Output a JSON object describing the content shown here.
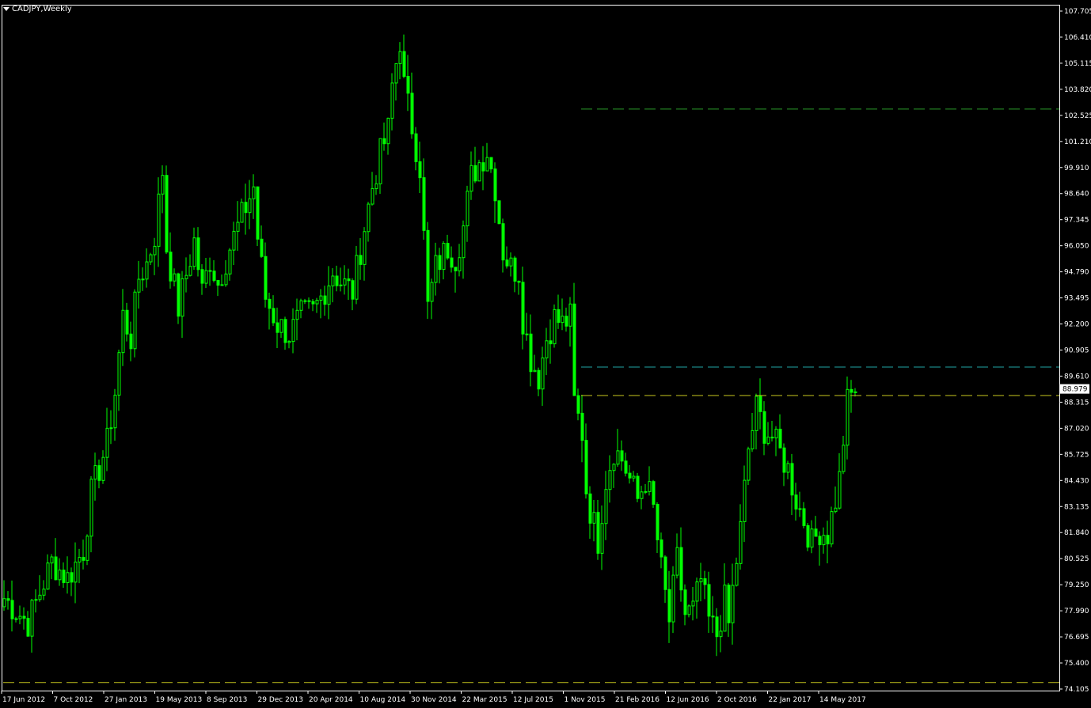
{
  "window": {
    "title": "CADJPY,Weekly"
  },
  "colors": {
    "background": "#000000",
    "axis": "#ffffff",
    "candle": "#00ff00",
    "line_green": "#2a9e2a",
    "line_cyan": "#1fa3a3",
    "line_yellow": "#c8c81e"
  },
  "chart_data": {
    "type": "candlestick",
    "symbol": "CADJPY",
    "timeframe": "Weekly",
    "current_price": "88.979",
    "ylim": [
      74.105,
      107.705
    ],
    "y_ticks": [
      "107.705",
      "106.410",
      "105.115",
      "103.820",
      "102.525",
      "101.210",
      "99.910",
      "98.640",
      "97.345",
      "96.050",
      "94.790",
      "93.495",
      "92.200",
      "90.905",
      "89.610",
      "88.315",
      "87.020",
      "85.725",
      "84.430",
      "83.135",
      "81.840",
      "80.525",
      "79.250",
      "77.990",
      "76.695",
      "75.400",
      "74.105"
    ],
    "x_ticks": [
      "17 Jun 2012",
      "7 Oct 2012",
      "27 Jan 2013",
      "19 May 2013",
      "8 Sep 2013",
      "29 Dec 2013",
      "20 Apr 2014",
      "10 Aug 2014",
      "30 Nov 2014",
      "22 Mar 2015",
      "12 Jul 2015",
      "1 Nov 2015",
      "21 Feb 2016",
      "12 Jun 2016",
      "2 Oct 2016",
      "22 Jan 2017",
      "14 May 2017"
    ],
    "price_path": [
      [
        0,
        78.6
      ],
      [
        6,
        77.4
      ],
      [
        12,
        80.4
      ],
      [
        16,
        79.6
      ],
      [
        20,
        81.0
      ],
      [
        22,
        83.8
      ],
      [
        26,
        86.3
      ],
      [
        28,
        88.8
      ],
      [
        30,
        92.6
      ],
      [
        32,
        91.5
      ],
      [
        34,
        94.5
      ],
      [
        36,
        95.2
      ],
      [
        38,
        96.6
      ],
      [
        40,
        99.8
      ],
      [
        41,
        96.0
      ],
      [
        44,
        93.0
      ],
      [
        48,
        96.3
      ],
      [
        50,
        93.8
      ],
      [
        52,
        95.4
      ],
      [
        54,
        94.2
      ],
      [
        57,
        96.0
      ],
      [
        60,
        97.5
      ],
      [
        63,
        99.0
      ],
      [
        64,
        96.5
      ],
      [
        66,
        93.5
      ],
      [
        69,
        92.2
      ],
      [
        72,
        91.7
      ],
      [
        75,
        92.6
      ],
      [
        78,
        92.8
      ],
      [
        80,
        93.5
      ],
      [
        83,
        94.8
      ],
      [
        85,
        94.3
      ],
      [
        88,
        93.8
      ],
      [
        91,
        97.0
      ],
      [
        93,
        99.0
      ],
      [
        95,
        100.6
      ],
      [
        97,
        101.8
      ],
      [
        98,
        104.0
      ],
      [
        100,
        106.3
      ],
      [
        101,
        104.0
      ],
      [
        103,
        102.0
      ],
      [
        105,
        100.0
      ],
      [
        106,
        96.5
      ],
      [
        107,
        93.0
      ],
      [
        109,
        95.0
      ],
      [
        112,
        96.0
      ],
      [
        114,
        95.5
      ],
      [
        116,
        97.0
      ],
      [
        118,
        99.5
      ],
      [
        120,
        100.2
      ],
      [
        122,
        100.8
      ],
      [
        124,
        99.0
      ],
      [
        126,
        95.8
      ],
      [
        128,
        95.0
      ],
      [
        130,
        94.8
      ],
      [
        131,
        92.5
      ],
      [
        133,
        90.5
      ],
      [
        135,
        89.6
      ],
      [
        137,
        91.5
      ],
      [
        139,
        92.5
      ],
      [
        141,
        92.2
      ],
      [
        143,
        92.5
      ],
      [
        144,
        88.3
      ],
      [
        146,
        86.8
      ],
      [
        147,
        84.0
      ],
      [
        148,
        83.0
      ],
      [
        150,
        81.5
      ],
      [
        152,
        84.5
      ],
      [
        154,
        86.0
      ],
      [
        156,
        85.5
      ],
      [
        158,
        84.5
      ],
      [
        160,
        83.5
      ],
      [
        162,
        84.5
      ],
      [
        164,
        83.0
      ],
      [
        166,
        80.0
      ],
      [
        168,
        77.5
      ],
      [
        170,
        80.5
      ],
      [
        172,
        77.8
      ],
      [
        174,
        78.0
      ],
      [
        176,
        79.5
      ],
      [
        178,
        77.5
      ],
      [
        180,
        76.8
      ],
      [
        182,
        78.5
      ],
      [
        183,
        77.3
      ],
      [
        184,
        79.0
      ],
      [
        186,
        82.0
      ],
      [
        188,
        86.0
      ],
      [
        190,
        88.0
      ],
      [
        192,
        87.0
      ],
      [
        194,
        86.6
      ],
      [
        196,
        85.8
      ],
      [
        198,
        85.0
      ],
      [
        200,
        83.5
      ],
      [
        202,
        82.5
      ],
      [
        204,
        81.3
      ],
      [
        206,
        82.0
      ],
      [
        208,
        81.8
      ],
      [
        210,
        83.5
      ],
      [
        211,
        84.5
      ],
      [
        212,
        86.5
      ],
      [
        213,
        88.3
      ],
      [
        215,
        89.0
      ]
    ],
    "horizontal_lines": [
      {
        "level": 102.85,
        "start_index": 146,
        "color": "#2a9e2a"
      },
      {
        "level": 90.06,
        "start_index": 146,
        "color": "#1fa3a3"
      },
      {
        "level": 88.65,
        "start_index": 146,
        "color": "#c8c81e"
      },
      {
        "level": 74.43,
        "start_index": 0,
        "color": "#c8c81e"
      }
    ]
  }
}
